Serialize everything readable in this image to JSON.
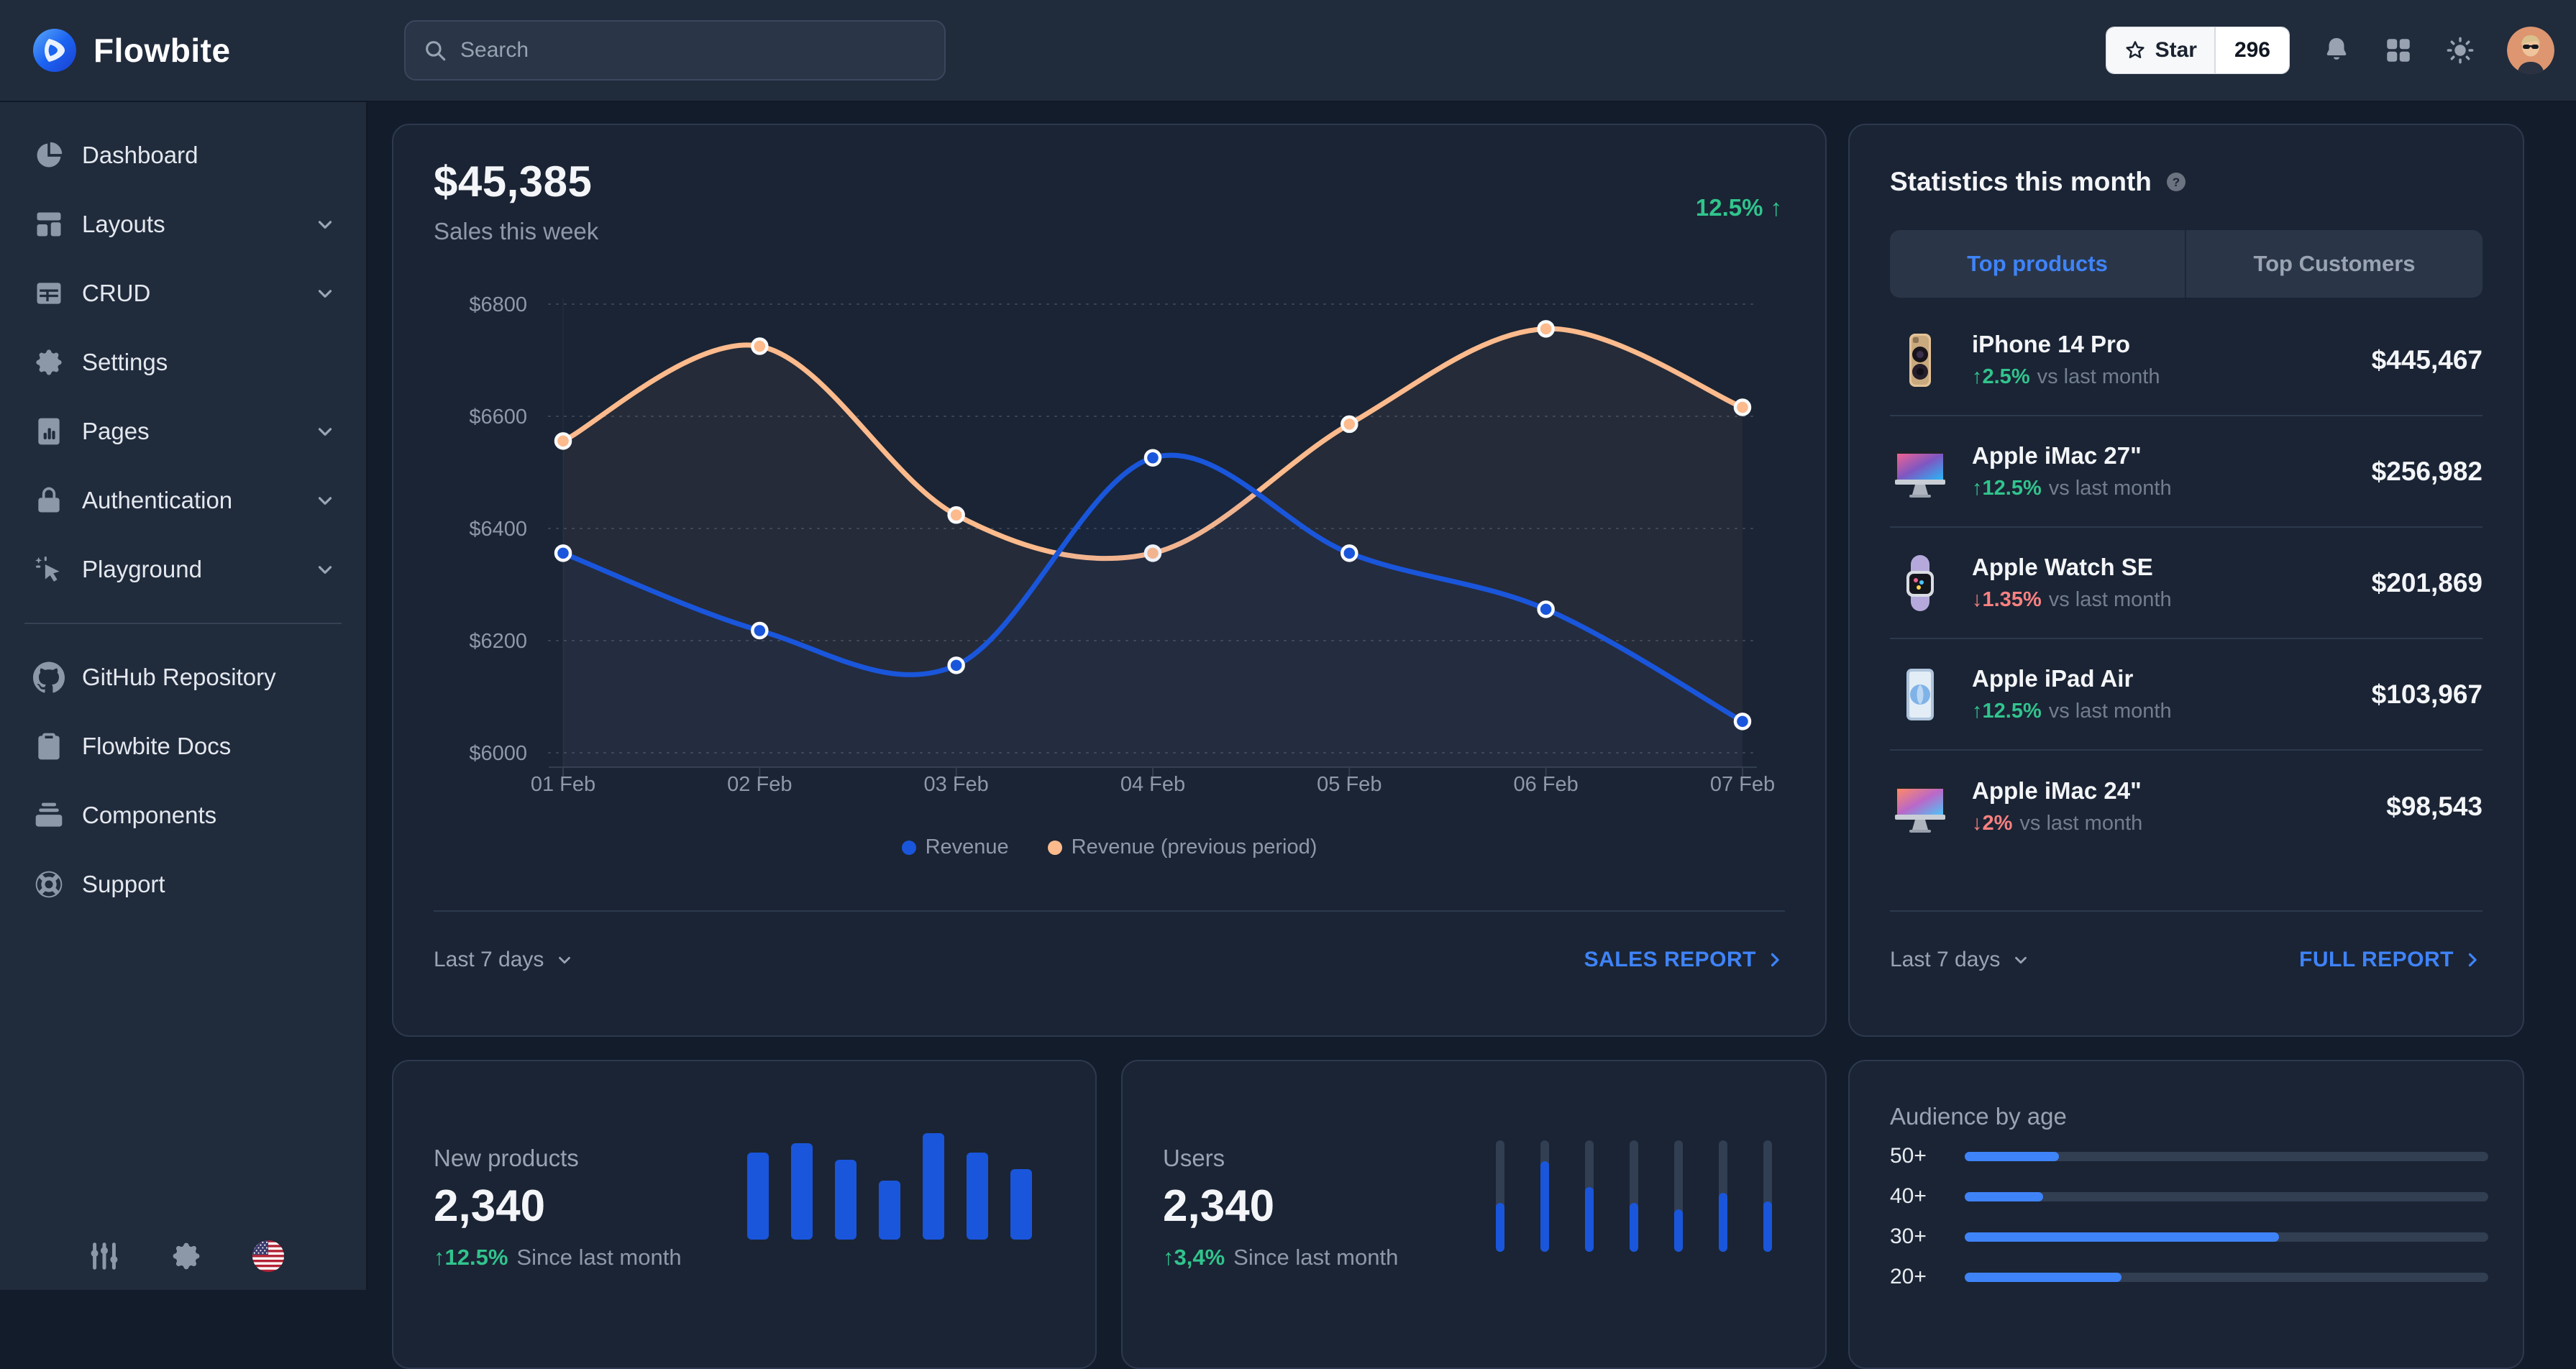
{
  "navbar": {
    "brand": "Flowbite",
    "search": {
      "placeholder": "Search"
    },
    "star_button": {
      "label": "Star",
      "count": "296"
    }
  },
  "sidebar": {
    "items": [
      {
        "label": "Dashboard",
        "icon": "pie"
      },
      {
        "label": "Layouts",
        "icon": "layouts",
        "expandable": true
      },
      {
        "label": "CRUD",
        "icon": "table",
        "expandable": true
      },
      {
        "label": "Settings",
        "icon": "gear"
      },
      {
        "label": "Pages",
        "icon": "pages",
        "expandable": true
      },
      {
        "label": "Authentication",
        "icon": "lock",
        "expandable": true
      },
      {
        "label": "Playground",
        "icon": "playground",
        "expandable": true
      }
    ],
    "secondary_items": [
      {
        "label": "GitHub Repository",
        "icon": "github"
      },
      {
        "label": "Flowbite Docs",
        "icon": "docs"
      },
      {
        "label": "Components",
        "icon": "collection"
      },
      {
        "label": "Support",
        "icon": "lifebuoy"
      }
    ]
  },
  "sales_card": {
    "amount": "$45,385",
    "subtitle": "Sales this week",
    "change": "12.5%",
    "change_direction": "up",
    "range_label": "Last 7 days",
    "report_label": "SALES REPORT"
  },
  "stats_card": {
    "title": "Statistics this month",
    "tabs": [
      {
        "label": "Top products",
        "active": true
      },
      {
        "label": "Top Customers",
        "active": false
      }
    ],
    "products": [
      {
        "name": "iPhone 14 Pro",
        "change": "2.5%",
        "direction": "up",
        "note": "vs last month",
        "amount": "$445,467",
        "image": "iphone"
      },
      {
        "name": "Apple iMac 27\"",
        "change": "12.5%",
        "direction": "up",
        "note": "vs last month",
        "amount": "$256,982",
        "image": "imac27"
      },
      {
        "name": "Apple Watch SE",
        "change": "1.35%",
        "direction": "down",
        "note": "vs last month",
        "amount": "$201,869",
        "image": "watch"
      },
      {
        "name": "Apple iPad Air",
        "change": "12.5%",
        "direction": "up",
        "note": "vs last month",
        "amount": "$103,967",
        "image": "ipad"
      },
      {
        "name": "Apple iMac 24\"",
        "change": "2%",
        "direction": "down",
        "note": "vs last month",
        "amount": "$98,543",
        "image": "imac24"
      }
    ],
    "range_label": "Last 7 days",
    "report_label": "FULL REPORT"
  },
  "new_products_card": {
    "label": "New products",
    "value": "2,340",
    "change": "12.5%",
    "direction": "up",
    "note": "Since last month"
  },
  "users_card": {
    "label": "Users",
    "value": "2,340",
    "change": "3,4%",
    "direction": "up",
    "note": "Since last month"
  },
  "audience_card": {
    "title": "Audience by age"
  },
  "chart_data": [
    {
      "id": "sales-week",
      "type": "line",
      "title": "Sales this week",
      "x": [
        "01 Feb",
        "02 Feb",
        "03 Feb",
        "04 Feb",
        "05 Feb",
        "06 Feb",
        "07 Feb"
      ],
      "series": [
        {
          "name": "Revenue",
          "color": "#1A56DB",
          "values": [
            6356,
            6218,
            6156,
            6526,
            6356,
            6256,
            6056
          ]
        },
        {
          "name": "Revenue (previous period)",
          "color": "#FDBA8C",
          "values": [
            6556,
            6725,
            6424,
            6356,
            6586,
            6756,
            6616
          ]
        }
      ],
      "ylim": [
        6000,
        6800
      ],
      "ytick_step": 200,
      "ytick_prefix": "$",
      "grid": "dotted-horizontal",
      "legend_position": "bottom",
      "marker": "circle"
    },
    {
      "id": "new-products-bars",
      "type": "bar",
      "values": [
        121,
        134,
        111,
        82,
        148,
        121,
        98
      ],
      "color": "#1A56DB"
    },
    {
      "id": "users-columns",
      "type": "bar",
      "values_pct": [
        44,
        81,
        58,
        44,
        38,
        53,
        45
      ],
      "color": "#1A56DB",
      "track_color": "#323E52"
    },
    {
      "id": "audience-by-age",
      "type": "bar",
      "orientation": "horizontal",
      "title": "Audience by age",
      "categories": [
        "50+",
        "40+",
        "30+",
        "20+"
      ],
      "values_pct": [
        18,
        15,
        60,
        30
      ],
      "color": "#3F83F8",
      "track_color": "#323E52"
    }
  ],
  "colors": {
    "accent_blue": "#3F83F8",
    "line_blue": "#1A56DB",
    "line_orange": "#FDBA8C",
    "positive_green": "#31C48D",
    "negative_red": "#F98080"
  }
}
